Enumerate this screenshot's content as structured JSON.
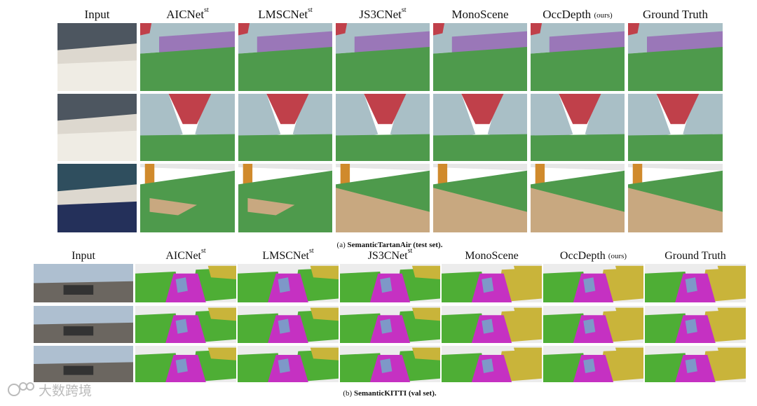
{
  "panels": [
    {
      "headers": [
        {
          "name": "Input"
        },
        {
          "name": "AICNet",
          "sup": "st"
        },
        {
          "name": "LMSCNet",
          "sup": "st"
        },
        {
          "name": "JS3CNet",
          "sup": "st"
        },
        {
          "name": "MonoScene"
        },
        {
          "name": "OccDepth",
          "note": "(ours)"
        },
        {
          "name": "Ground Truth"
        }
      ],
      "caption": {
        "label": "(a)",
        "text": "SemanticTartanAir (test set)."
      }
    },
    {
      "headers": [
        {
          "name": "Input"
        },
        {
          "name": "AICNet",
          "sup": "st"
        },
        {
          "name": "LMSCNet",
          "sup": "st"
        },
        {
          "name": "JS3CNet",
          "sup": "st"
        },
        {
          "name": "MonoScene"
        },
        {
          "name": "OccDepth",
          "note": "(ours)"
        },
        {
          "name": "Ground Truth"
        }
      ],
      "caption": {
        "label": "(b)",
        "text": "SemanticKITTI  (val set)."
      }
    }
  ],
  "watermark": "大数跨境"
}
